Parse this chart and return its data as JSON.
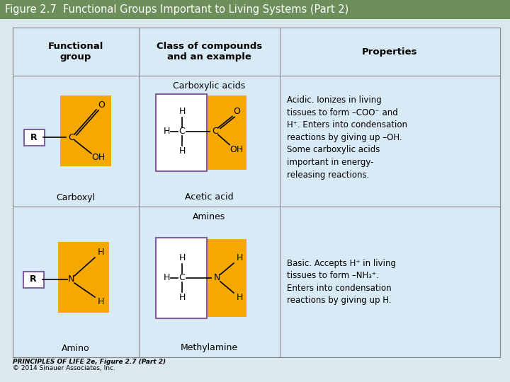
{
  "title": "Figure 2.7  Functional Groups Important to Living Systems (Part 2)",
  "title_bg": "#6b8e5a",
  "title_color": "white",
  "title_fontsize": 10.5,
  "outer_bg": "#dce8f0",
  "table_bg": "#cfe2f0",
  "cell_bg": "#d8eaf5",
  "header_bg": "#cfe2f0",
  "col1_header": "Functional\ngroup",
  "col2_header": "Class of compounds\nand an example",
  "col3_header": "Properties",
  "row1_class": "Carboxylic acids",
  "row1_fg_label": "Carboxyl",
  "row1_example_label": "Acetic acid",
  "row1_properties": "Acidic. Ionizes in living\ntissues to form –COO⁻ and\nH⁺. Enters into condensation\nreactions by giving up –OH.\nSome carboxylic acids\nimportant in energy-\nreleasing reactions.",
  "row2_class": "Amines",
  "row2_fg_label": "Amino",
  "row2_example_label": "Methylamine",
  "row2_properties": "Basic. Accepts H⁺ in living\ntissues to form –NH₃⁺.\nEnters into condensation\nreactions by giving up H.",
  "orange_color": "#f5a800",
  "purple_color": "#8060a0",
  "border_color": "#888888",
  "footer_line1": "PRINCIPLES OF LIFE 2e, Figure 2.7 (Part 2)",
  "footer_line2": "© 2014 Sinauer Associates, Inc."
}
